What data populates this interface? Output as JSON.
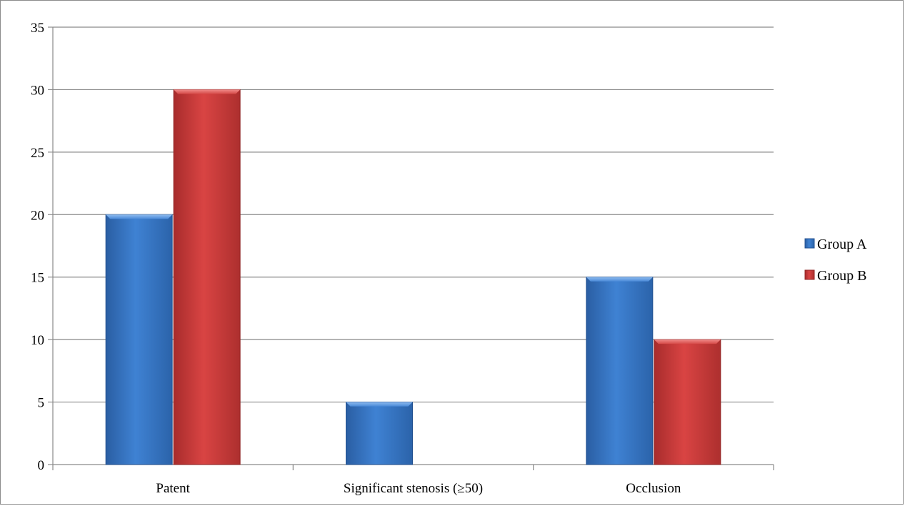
{
  "chart_data": {
    "type": "bar",
    "categories": [
      "Patent",
      "Significant stenosis (≥50)",
      "Occlusion"
    ],
    "series": [
      {
        "name": "Group A",
        "values": [
          20,
          5,
          15
        ],
        "color": "#3a78c8"
      },
      {
        "name": "Group B",
        "values": [
          30,
          0,
          10
        ],
        "color": "#cf3a39"
      }
    ],
    "ylim": [
      0,
      35
    ],
    "yticks": [
      0,
      5,
      10,
      15,
      20,
      25,
      30,
      35
    ],
    "grid": true,
    "legend": "right",
    "title": "",
    "xlabel": "",
    "ylabel": ""
  }
}
